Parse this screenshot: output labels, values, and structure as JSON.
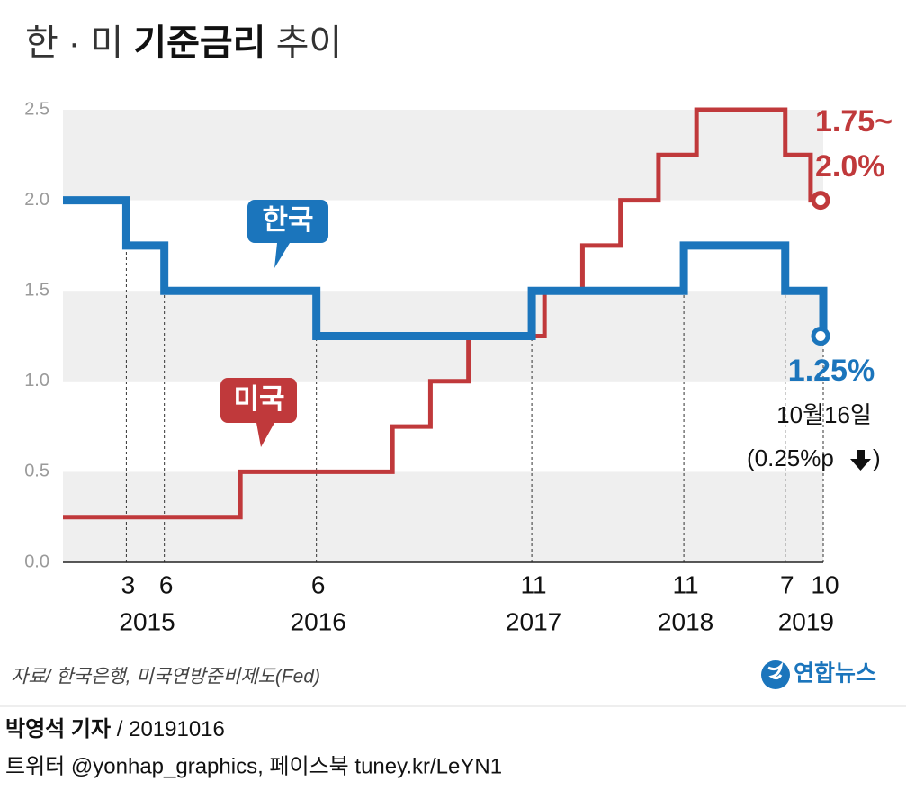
{
  "chart_data": {
    "type": "step-line",
    "title_parts": [
      "한 · 미",
      "기준금리",
      "추이"
    ],
    "xlim": [
      "2014-10",
      "2019-10"
    ],
    "xticks": [
      {
        "value": "2015-03",
        "label": "3"
      },
      {
        "value": "2015-06",
        "label": "6"
      },
      {
        "value": "2016-06",
        "label": "6"
      },
      {
        "value": "2017-11",
        "label": "11"
      },
      {
        "value": "2018-11",
        "label": "11"
      },
      {
        "value": "2019-07",
        "label": "7"
      },
      {
        "value": "2019-10",
        "label": "10"
      }
    ],
    "year_labels": [
      "2015",
      "2016",
      "2017",
      "2018",
      "2019"
    ],
    "ylim": [
      0,
      2.5
    ],
    "yticks": [
      {
        "value": 0,
        "label": "0.0"
      },
      0.5,
      {
        "value": 1,
        "label": "1.0"
      },
      1.5,
      {
        "value": 2,
        "label": "2.0"
      },
      2.5
    ],
    "grid": "bands",
    "series": [
      {
        "name": "미국",
        "color": "#c0393b",
        "x": [
          "2014-10",
          "2015-12",
          "2016-12",
          "2017-03",
          "2017-06",
          "2017-12",
          "2018-03",
          "2018-06",
          "2018-09",
          "2018-12",
          "2019-07",
          "2019-09",
          "2019-10"
        ],
        "values": [
          0.25,
          0.5,
          0.75,
          1.0,
          1.25,
          1.5,
          1.75,
          2.0,
          2.25,
          2.5,
          2.25,
          2.0,
          2.0
        ]
      },
      {
        "name": "한국",
        "color": "#1b75bc",
        "x": [
          "2014-10",
          "2015-03",
          "2015-06",
          "2016-06",
          "2017-11",
          "2018-11",
          "2019-07",
          "2019-10"
        ],
        "values": [
          2.0,
          1.75,
          1.5,
          1.25,
          1.5,
          1.75,
          1.5,
          1.25
        ]
      }
    ],
    "annotations": {
      "us_range": [
        "1.75~",
        "2.0%"
      ],
      "kr_rate": "1.25%",
      "date": "10월16일",
      "change": "(0.25%p",
      "change_end": ")"
    },
    "source": "자료/ 한국은행, 미국연방준비제도(Fed)",
    "logo": "연합뉴스",
    "byline": [
      "박영석 기자",
      "/",
      "20191016"
    ],
    "social": "트위터 @yonhap_graphics, 페이스북 tuney.kr/LeYN1"
  }
}
